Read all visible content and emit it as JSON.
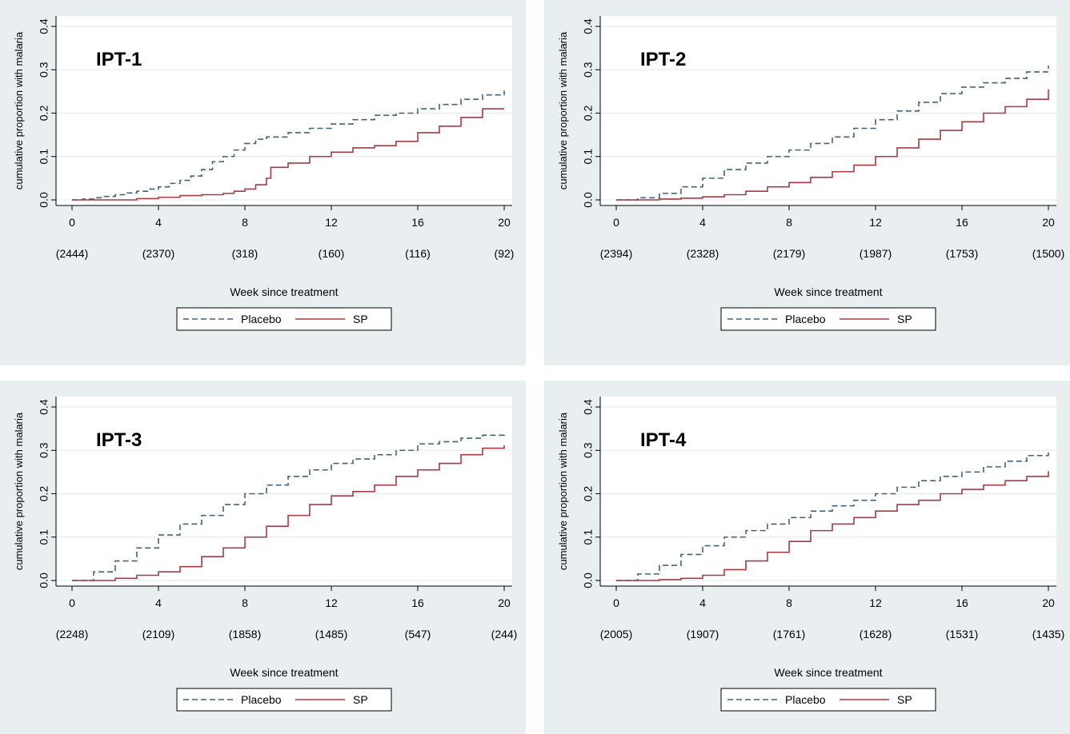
{
  "figure": {
    "background": "#ffffff",
    "panel_background": "#e9eef1",
    "plot_background": "#ffffff",
    "grid_color": "#e3e9ee",
    "axis_color": "#000000"
  },
  "chart_data": [
    {
      "type": "line",
      "title": "IPT-1",
      "xlabel": "Week since treatment",
      "ylabel": "cumulative proportion with malaria",
      "xlim": [
        0,
        20
      ],
      "ylim": [
        0,
        0.4
      ],
      "x_ticks": [
        0,
        4,
        8,
        12,
        16,
        20
      ],
      "y_ticks": [
        0,
        0.1,
        0.2,
        0.3,
        0.4
      ],
      "y_tick_labels": [
        "0.0",
        "0.1",
        "0.2",
        "0.3",
        "0.4"
      ],
      "x_tick_labels": [
        "0",
        "4",
        "8",
        "12",
        "16",
        "20"
      ],
      "at_risk": [
        "(2444)",
        "(2370)",
        "(318)",
        "(160)",
        "(116)",
        "(92)"
      ],
      "grid": true,
      "legend_position": "bottom",
      "series": [
        {
          "name": "Placebo",
          "color": "#41627f",
          "dash": "dashed",
          "x": [
            0,
            0.5,
            1,
            1.5,
            2,
            2.5,
            3,
            3.5,
            4,
            4.5,
            5,
            5.5,
            6,
            6.5,
            7,
            7.5,
            8,
            8.5,
            9,
            10,
            11,
            12,
            13,
            14,
            15,
            16,
            17,
            18,
            19,
            20
          ],
          "y": [
            0,
            0.002,
            0.005,
            0.008,
            0.012,
            0.016,
            0.02,
            0.025,
            0.03,
            0.038,
            0.045,
            0.055,
            0.07,
            0.088,
            0.1,
            0.115,
            0.13,
            0.14,
            0.145,
            0.155,
            0.165,
            0.175,
            0.185,
            0.195,
            0.2,
            0.21,
            0.22,
            0.232,
            0.242,
            0.252
          ]
        },
        {
          "name": "SP",
          "color": "#a83a41",
          "dash": "solid",
          "x": [
            0,
            1,
            2,
            3,
            4,
            5,
            6,
            7,
            7.5,
            8,
            8.5,
            9,
            9.2,
            10,
            11,
            12,
            13,
            14,
            15,
            16,
            17,
            18,
            19,
            20
          ],
          "y": [
            0,
            0,
            0,
            0.003,
            0.006,
            0.01,
            0.012,
            0.015,
            0.02,
            0.025,
            0.035,
            0.05,
            0.075,
            0.085,
            0.1,
            0.11,
            0.12,
            0.125,
            0.135,
            0.155,
            0.17,
            0.19,
            0.21,
            0.21
          ]
        }
      ]
    },
    {
      "type": "line",
      "title": "IPT-2",
      "xlabel": "Week since treatment",
      "ylabel": "cumulative proportion with malaria",
      "xlim": [
        0,
        20
      ],
      "ylim": [
        0,
        0.4
      ],
      "x_ticks": [
        0,
        4,
        8,
        12,
        16,
        20
      ],
      "y_ticks": [
        0,
        0.1,
        0.2,
        0.3,
        0.4
      ],
      "y_tick_labels": [
        "0.0",
        "0.1",
        "0.2",
        "0.3",
        "0.4"
      ],
      "x_tick_labels": [
        "0",
        "4",
        "8",
        "12",
        "16",
        "20"
      ],
      "at_risk": [
        "(2394)",
        "(2328)",
        "(2179)",
        "(1987)",
        "(1753)",
        "(1500)"
      ],
      "grid": true,
      "legend_position": "bottom",
      "series": [
        {
          "name": "Placebo",
          "color": "#41627f",
          "dash": "dashed",
          "x": [
            0,
            1,
            2,
            3,
            4,
            5,
            6,
            7,
            8,
            9,
            10,
            11,
            12,
            13,
            14,
            15,
            16,
            17,
            18,
            19,
            20
          ],
          "y": [
            0,
            0.005,
            0.015,
            0.03,
            0.05,
            0.07,
            0.085,
            0.1,
            0.115,
            0.13,
            0.145,
            0.165,
            0.185,
            0.205,
            0.225,
            0.245,
            0.26,
            0.27,
            0.28,
            0.295,
            0.31
          ]
        },
        {
          "name": "SP",
          "color": "#a83a41",
          "dash": "solid",
          "x": [
            0,
            1,
            2,
            3,
            4,
            5,
            6,
            7,
            8,
            9,
            10,
            11,
            12,
            13,
            14,
            15,
            16,
            17,
            18,
            19,
            20
          ],
          "y": [
            0,
            0,
            0.002,
            0.004,
            0.007,
            0.012,
            0.02,
            0.03,
            0.04,
            0.052,
            0.065,
            0.08,
            0.1,
            0.12,
            0.14,
            0.16,
            0.18,
            0.2,
            0.215,
            0.232,
            0.255
          ]
        }
      ]
    },
    {
      "type": "line",
      "title": "IPT-3",
      "xlabel": "Week since treatment",
      "ylabel": "cumulative proportion with malaria",
      "xlim": [
        0,
        20
      ],
      "ylim": [
        0,
        0.4
      ],
      "x_ticks": [
        0,
        4,
        8,
        12,
        16,
        20
      ],
      "y_ticks": [
        0,
        0.1,
        0.2,
        0.3,
        0.4
      ],
      "y_tick_labels": [
        "0.0",
        "0.1",
        "0.2",
        "0.3",
        "0.4"
      ],
      "x_tick_labels": [
        "0",
        "4",
        "8",
        "12",
        "16",
        "20"
      ],
      "at_risk": [
        "(2248)",
        "(2109)",
        "(1858)",
        "(1485)",
        "(547)",
        "(244)"
      ],
      "grid": true,
      "legend_position": "bottom",
      "series": [
        {
          "name": "Placebo",
          "color": "#41627f",
          "dash": "dashed",
          "x": [
            0,
            1,
            2,
            3,
            4,
            5,
            6,
            7,
            8,
            9,
            10,
            11,
            12,
            13,
            14,
            15,
            16,
            17,
            18,
            19,
            20
          ],
          "y": [
            0,
            0.02,
            0.045,
            0.075,
            0.105,
            0.13,
            0.15,
            0.175,
            0.2,
            0.22,
            0.24,
            0.255,
            0.27,
            0.28,
            0.29,
            0.3,
            0.315,
            0.32,
            0.328,
            0.335,
            0.34
          ]
        },
        {
          "name": "SP",
          "color": "#a83a41",
          "dash": "solid",
          "x": [
            0,
            1,
            2,
            3,
            4,
            5,
            6,
            7,
            8,
            9,
            10,
            11,
            12,
            13,
            14,
            15,
            16,
            17,
            18,
            19,
            20
          ],
          "y": [
            0,
            0,
            0.005,
            0.012,
            0.02,
            0.032,
            0.055,
            0.075,
            0.1,
            0.125,
            0.15,
            0.175,
            0.195,
            0.205,
            0.22,
            0.24,
            0.255,
            0.27,
            0.29,
            0.305,
            0.312
          ]
        }
      ]
    },
    {
      "type": "line",
      "title": "IPT-4",
      "xlabel": "Week since treatment",
      "ylabel": "cumulative proportion with malaria",
      "xlim": [
        0,
        20
      ],
      "ylim": [
        0,
        0.4
      ],
      "x_ticks": [
        0,
        4,
        8,
        12,
        16,
        20
      ],
      "y_ticks": [
        0,
        0.1,
        0.2,
        0.3,
        0.4
      ],
      "y_tick_labels": [
        "0.0",
        "0.1",
        "0.2",
        "0.3",
        "0.4"
      ],
      "x_tick_labels": [
        "0",
        "4",
        "8",
        "12",
        "16",
        "20"
      ],
      "at_risk": [
        "(2005)",
        "(1907)",
        "(1761)",
        "(1628)",
        "(1531)",
        "(1435)"
      ],
      "grid": true,
      "legend_position": "bottom",
      "series": [
        {
          "name": "Placebo",
          "color": "#41627f",
          "dash": "dashed",
          "x": [
            0,
            1,
            2,
            3,
            4,
            5,
            6,
            7,
            8,
            9,
            10,
            11,
            12,
            13,
            14,
            15,
            16,
            17,
            18,
            19,
            20
          ],
          "y": [
            0,
            0.015,
            0.035,
            0.06,
            0.08,
            0.1,
            0.115,
            0.13,
            0.145,
            0.16,
            0.172,
            0.185,
            0.2,
            0.215,
            0.23,
            0.24,
            0.25,
            0.262,
            0.275,
            0.288,
            0.302
          ]
        },
        {
          "name": "SP",
          "color": "#a83a41",
          "dash": "solid",
          "x": [
            0,
            1,
            2,
            3,
            4,
            5,
            6,
            7,
            8,
            9,
            10,
            11,
            12,
            13,
            14,
            15,
            16,
            17,
            18,
            19,
            20
          ],
          "y": [
            0,
            0,
            0.002,
            0.005,
            0.012,
            0.025,
            0.045,
            0.065,
            0.09,
            0.115,
            0.13,
            0.145,
            0.16,
            0.175,
            0.185,
            0.2,
            0.21,
            0.22,
            0.23,
            0.24,
            0.252
          ]
        }
      ]
    }
  ]
}
